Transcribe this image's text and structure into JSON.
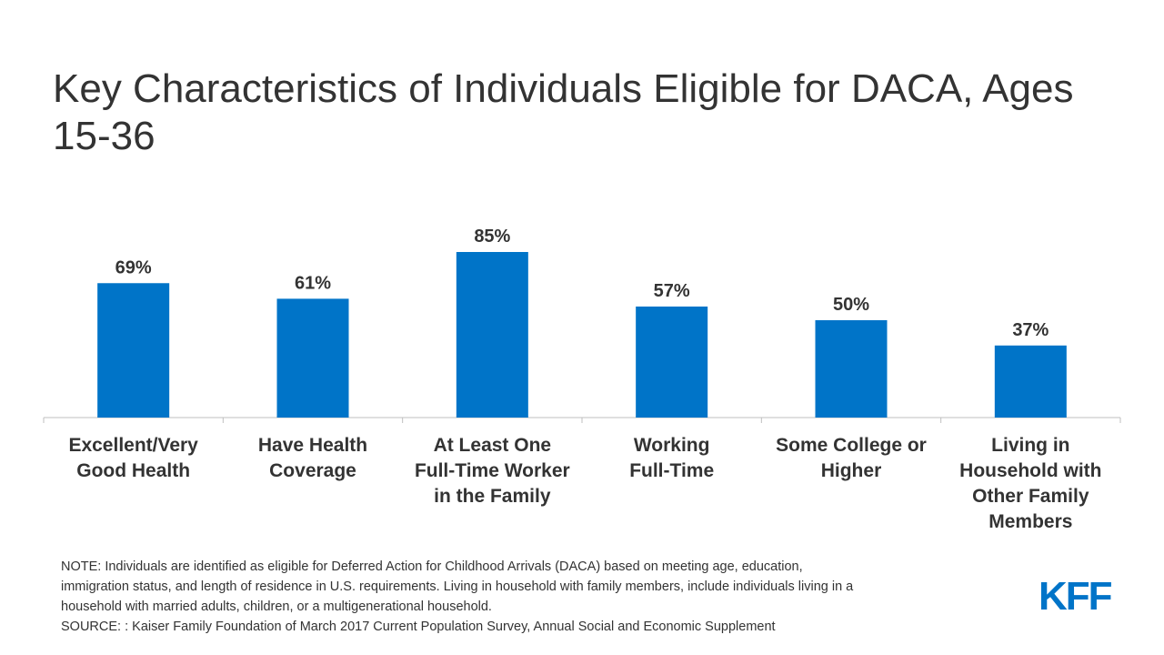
{
  "title": "Key Characteristics of Individuals Eligible for DACA, Ages 15-36",
  "chart_data": {
    "type": "bar",
    "title": "Key Characteristics of Individuals Eligible for DACA, Ages 15-36",
    "categories": [
      "Excellent/Very Good Health",
      "Have Health Coverage",
      "At Least One Full-Time Worker in the Family",
      "Working Full-Time",
      "Some College or Higher",
      "Living in Household with Other Family Members"
    ],
    "category_lines": [
      [
        "Excellent/Very",
        "Good Health"
      ],
      [
        "Have Health",
        "Coverage"
      ],
      [
        "At Least One",
        "Full-Time Worker",
        "in the Family"
      ],
      [
        "Working",
        "Full-Time"
      ],
      [
        "Some College or",
        "Higher"
      ],
      [
        "Living in",
        "Household with",
        "Other Family",
        "Members"
      ]
    ],
    "values": [
      69,
      61,
      85,
      57,
      50,
      37
    ],
    "data_labels": [
      "69%",
      "61%",
      "85%",
      "57%",
      "50%",
      "37%"
    ],
    "xlabel": "",
    "ylabel": "",
    "ylim": [
      0,
      100
    ],
    "grid": false,
    "legend": "none",
    "bar_color": "#0074c8",
    "axis_color": "#bfbfbf"
  },
  "notes": {
    "note": "NOTE:  Individuals  are identified  as eligible  for Deferred Action for Childhood Arrivals  (DACA) based on meeting  age, education,  immigration  status,  and length  of residence in U.S. requirements.  Living  in household  with family members,  include individuals  living  in a household  with  married adults,  children,  or a multigenerational  household.",
    "note_lines": [
      "NOTE:  Individuals  are identified  as eligible  for Deferred Action for Childhood Arrivals  (DACA) based on meeting  age, education,",
      "immigration  status,  and length  of residence in U.S. requirements.  Living  in household  with family members,  include individuals  living  in a",
      "household  with  married adults,  children,  or a multigenerational  household."
    ],
    "source": "SOURCE:  : Kaiser Family Foundation  of  March 2017  Current Population  Survey, Annual Social and Economic  Supplement"
  },
  "logo": {
    "text": "KFF",
    "color": "#0074c8"
  }
}
